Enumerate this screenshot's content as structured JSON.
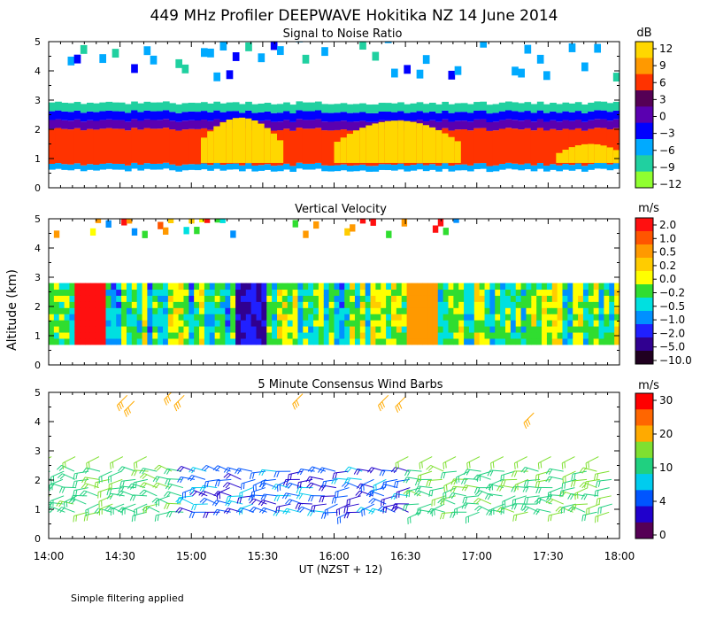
{
  "title": "449 MHz Profiler DEEPWAVE Hokitika NZ 14 June 2014",
  "y_axis_label": "Altitude (km)",
  "x_axis_label": "UT  (NZST + 12)",
  "x_tick_labels": [
    "14:00",
    "14:30",
    "15:00",
    "15:30",
    "16:00",
    "16:30",
    "17:00",
    "17:30",
    "18:00"
  ],
  "footnote": "Simple filtering applied",
  "chart_data": [
    {
      "type": "heatmap",
      "id": "snr",
      "title": "Signal to Noise Ratio",
      "units": "dB",
      "xlim": [
        14.0,
        18.0
      ],
      "ylim": [
        0,
        5
      ],
      "y_ticks": [
        0,
        1,
        2,
        3,
        4,
        5
      ],
      "colorbar_labels": [
        "12",
        "9",
        "6",
        "3",
        "0",
        "−3",
        "−6",
        "−9",
        "−12"
      ],
      "colorbar_colors": [
        "#ffd700",
        "#ff9900",
        "#ff3300",
        "#550055",
        "#5a00b0",
        "#0000ff",
        "#00aaff",
        "#20d0a0",
        "#90ff30"
      ],
      "layers": [
        {
          "from_km": 0.6,
          "to_km": 0.8,
          "value_db": -6
        },
        {
          "from_km": 0.8,
          "to_km": 2.0,
          "value_db": 6
        },
        {
          "from_km": 2.0,
          "to_km": 2.3,
          "value_db": 0
        },
        {
          "from_km": 2.3,
          "to_km": 2.6,
          "value_db": -3
        },
        {
          "from_km": 2.6,
          "to_km": 2.9,
          "value_db": -9
        }
      ],
      "peaks": [
        {
          "from_ut": 15.05,
          "to_ut": 15.6,
          "top_km": 2.4,
          "value_db": 12
        },
        {
          "from_ut": 16.0,
          "to_ut": 16.85,
          "top_km": 2.3,
          "value_db": 12
        },
        {
          "from_ut": 17.55,
          "to_ut": 18.0,
          "top_km": 1.5,
          "value_db": 12
        }
      ]
    },
    {
      "type": "heatmap",
      "id": "vertical_velocity",
      "title": "Vertical Velocity",
      "units": "m/s",
      "xlim": [
        14.0,
        18.0
      ],
      "ylim": [
        0,
        5
      ],
      "y_ticks": [
        0,
        1,
        2,
        3,
        4,
        5
      ],
      "colorbar_labels": [
        "2.0",
        "1.0",
        "0.5",
        "0.2",
        "0.0",
        "−0.2",
        "−0.5",
        "−1.0",
        "−2.0",
        "−5.0",
        "−10.0"
      ],
      "colorbar_colors": [
        "#ff1010",
        "#ff5500",
        "#ff9900",
        "#ffcc00",
        "#ffff00",
        "#30dd30",
        "#00e0e0",
        "#0090ff",
        "#2020ff",
        "#300090",
        "#200020"
      ],
      "data_extent_km": [
        0.7,
        2.8
      ],
      "features": [
        {
          "ut": 14.28,
          "value_ms": 2.0
        },
        {
          "ut": 15.4,
          "value_ms": -2.0
        },
        {
          "ut": 16.6,
          "value_ms": 0.5
        }
      ]
    },
    {
      "type": "scatter",
      "id": "wind_barbs",
      "title": "5 Minute Consensus Wind Barbs",
      "units": "m/s",
      "xlim": [
        14.0,
        18.0
      ],
      "ylim": [
        0,
        5
      ],
      "y_ticks": [
        0,
        1,
        2,
        3,
        4,
        5
      ],
      "colorbar_labels": [
        "30",
        "20",
        "10",
        "4",
        "0"
      ],
      "colorbar_colors": [
        "#ff0000",
        "#ff6600",
        "#ffaa00",
        "#7fe030",
        "#20d080",
        "#00ccee",
        "#0055ff",
        "#2000cc",
        "#550055"
      ],
      "speed_bands": [
        {
          "from_km": 0.8,
          "to_km": 2.5,
          "speed_ms": 10
        },
        {
          "from_km": 2.5,
          "to_km": 3.2,
          "speed_ms": 15
        },
        {
          "from_km": 4.0,
          "to_km": 5.2,
          "speed_ms": 20
        }
      ]
    }
  ]
}
